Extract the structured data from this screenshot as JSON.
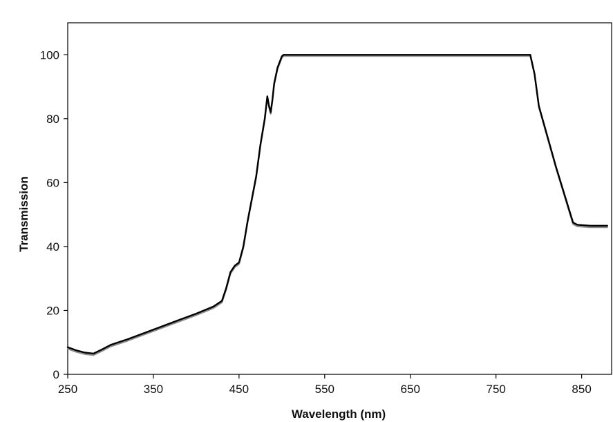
{
  "chart_data": {
    "type": "line",
    "title": "",
    "xlabel": "Wavelength (nm)",
    "ylabel": "Transmission",
    "xlim": [
      250,
      885
    ],
    "ylim": [
      0,
      110
    ],
    "xticks": [
      250,
      350,
      450,
      550,
      650,
      750,
      850
    ],
    "yticks": [
      0,
      20,
      40,
      60,
      80,
      100
    ],
    "grid": false,
    "legend": "none",
    "colors": {
      "series_1": "#000000",
      "series_2": "#8c8c8c",
      "axis": "#000000"
    },
    "series": [
      {
        "x": [
          250,
          260,
          270,
          280,
          290,
          300,
          320,
          350,
          380,
          400,
          420,
          430,
          435,
          440,
          445,
          450,
          455,
          460,
          465,
          470,
          475,
          480,
          483,
          485,
          487,
          489,
          491,
          495,
          500,
          502,
          790,
          795,
          800,
          820,
          840,
          845,
          860,
          880
        ],
        "y": [
          8.5,
          7.5,
          6.8,
          6.5,
          7.8,
          9.2,
          11,
          14,
          17,
          19,
          21.2,
          23,
          27,
          32,
          34,
          35,
          40,
          48,
          55,
          62,
          72,
          80,
          87,
          84,
          82,
          86,
          91,
          96,
          99.5,
          100,
          100,
          94,
          84,
          65,
          47.5,
          46.8,
          46.5,
          46.5
        ]
      },
      {
        "x": [
          250,
          260,
          270,
          280,
          290,
          300,
          320,
          350,
          380,
          400,
          420,
          430,
          435,
          440,
          445,
          450,
          455,
          460,
          465,
          470,
          475,
          480,
          483,
          485,
          487,
          489,
          491,
          495,
          500,
          502,
          790,
          795,
          800,
          820,
          840,
          845,
          860,
          880
        ],
        "y": [
          8.0,
          7.0,
          6.3,
          6.0,
          7.3,
          8.7,
          10.5,
          13.5,
          16.5,
          18.5,
          20.7,
          22.5,
          26.5,
          31.5,
          33.5,
          34.5,
          39.5,
          47.5,
          54.5,
          61.5,
          71.5,
          79.5,
          86.5,
          83.5,
          81.5,
          85.5,
          90.5,
          95.5,
          99.0,
          99.6,
          99.6,
          93.6,
          83.6,
          64.6,
          47.0,
          46.3,
          46.0,
          46.0
        ]
      }
    ]
  }
}
